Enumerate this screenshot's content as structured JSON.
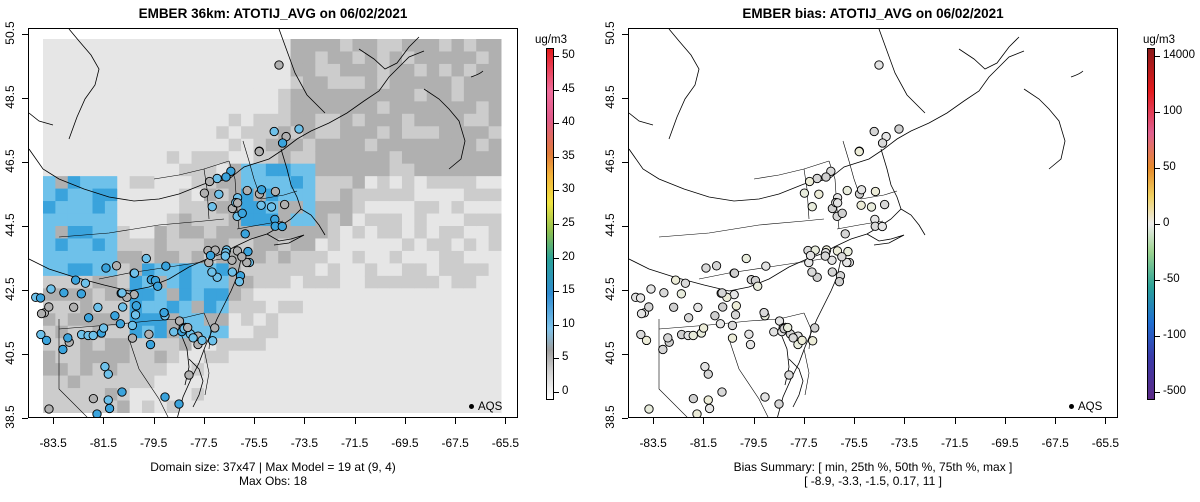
{
  "left_panel": {
    "title": "EMBER 36km: ATOTIJ_AVG on 06/02/2021",
    "caption_line1": "Domain size: 37x47 | Max Model = 19 at (9, 4)",
    "caption_line2": "Max Obs: 18",
    "legend_label": "AQS",
    "colorbar_title": "ug/m3",
    "colorbar_labels": [
      "50",
      "45",
      "40",
      "35",
      "30",
      "25",
      "20",
      "15",
      "10",
      "5",
      "0"
    ]
  },
  "right_panel": {
    "title": "EMBER bias: ATOTIJ_AVG on 06/02/2021",
    "caption_line1": "Bias Summary: [ min, 25th %, 50th %, 75th %, max ]",
    "caption_line2": "[ -8.9,   -3.3,   -1.5,   0.17,   11 ]",
    "legend_label": "AQS",
    "colorbar_title": "ug/m3",
    "colorbar_labels": [
      "14000",
      "100",
      "50",
      "0",
      "-50",
      "-100",
      "-500"
    ]
  },
  "axes": {
    "x_ticks": [
      "-83.5",
      "-81.5",
      "-79.5",
      "-77.5",
      "-75.5",
      "-73.5",
      "-71.5",
      "-69.5",
      "-67.5",
      "-65.5"
    ],
    "y_ticks": [
      "38.5",
      "40.5",
      "42.5",
      "44.5",
      "46.5",
      "48.5",
      "50.5"
    ],
    "xlim": [
      -84.5,
      -65.0
    ],
    "ylim": [
      38.5,
      50.7
    ]
  },
  "colors": {
    "grid_light": "#e6e6e6",
    "grid_mid": "#cccccc",
    "grid_dark": "#b0b0b0",
    "blue_light": "#6ec1ea",
    "blue_mid": "#3aa3dc",
    "bias_neutral": "#dcdcdc"
  }
}
